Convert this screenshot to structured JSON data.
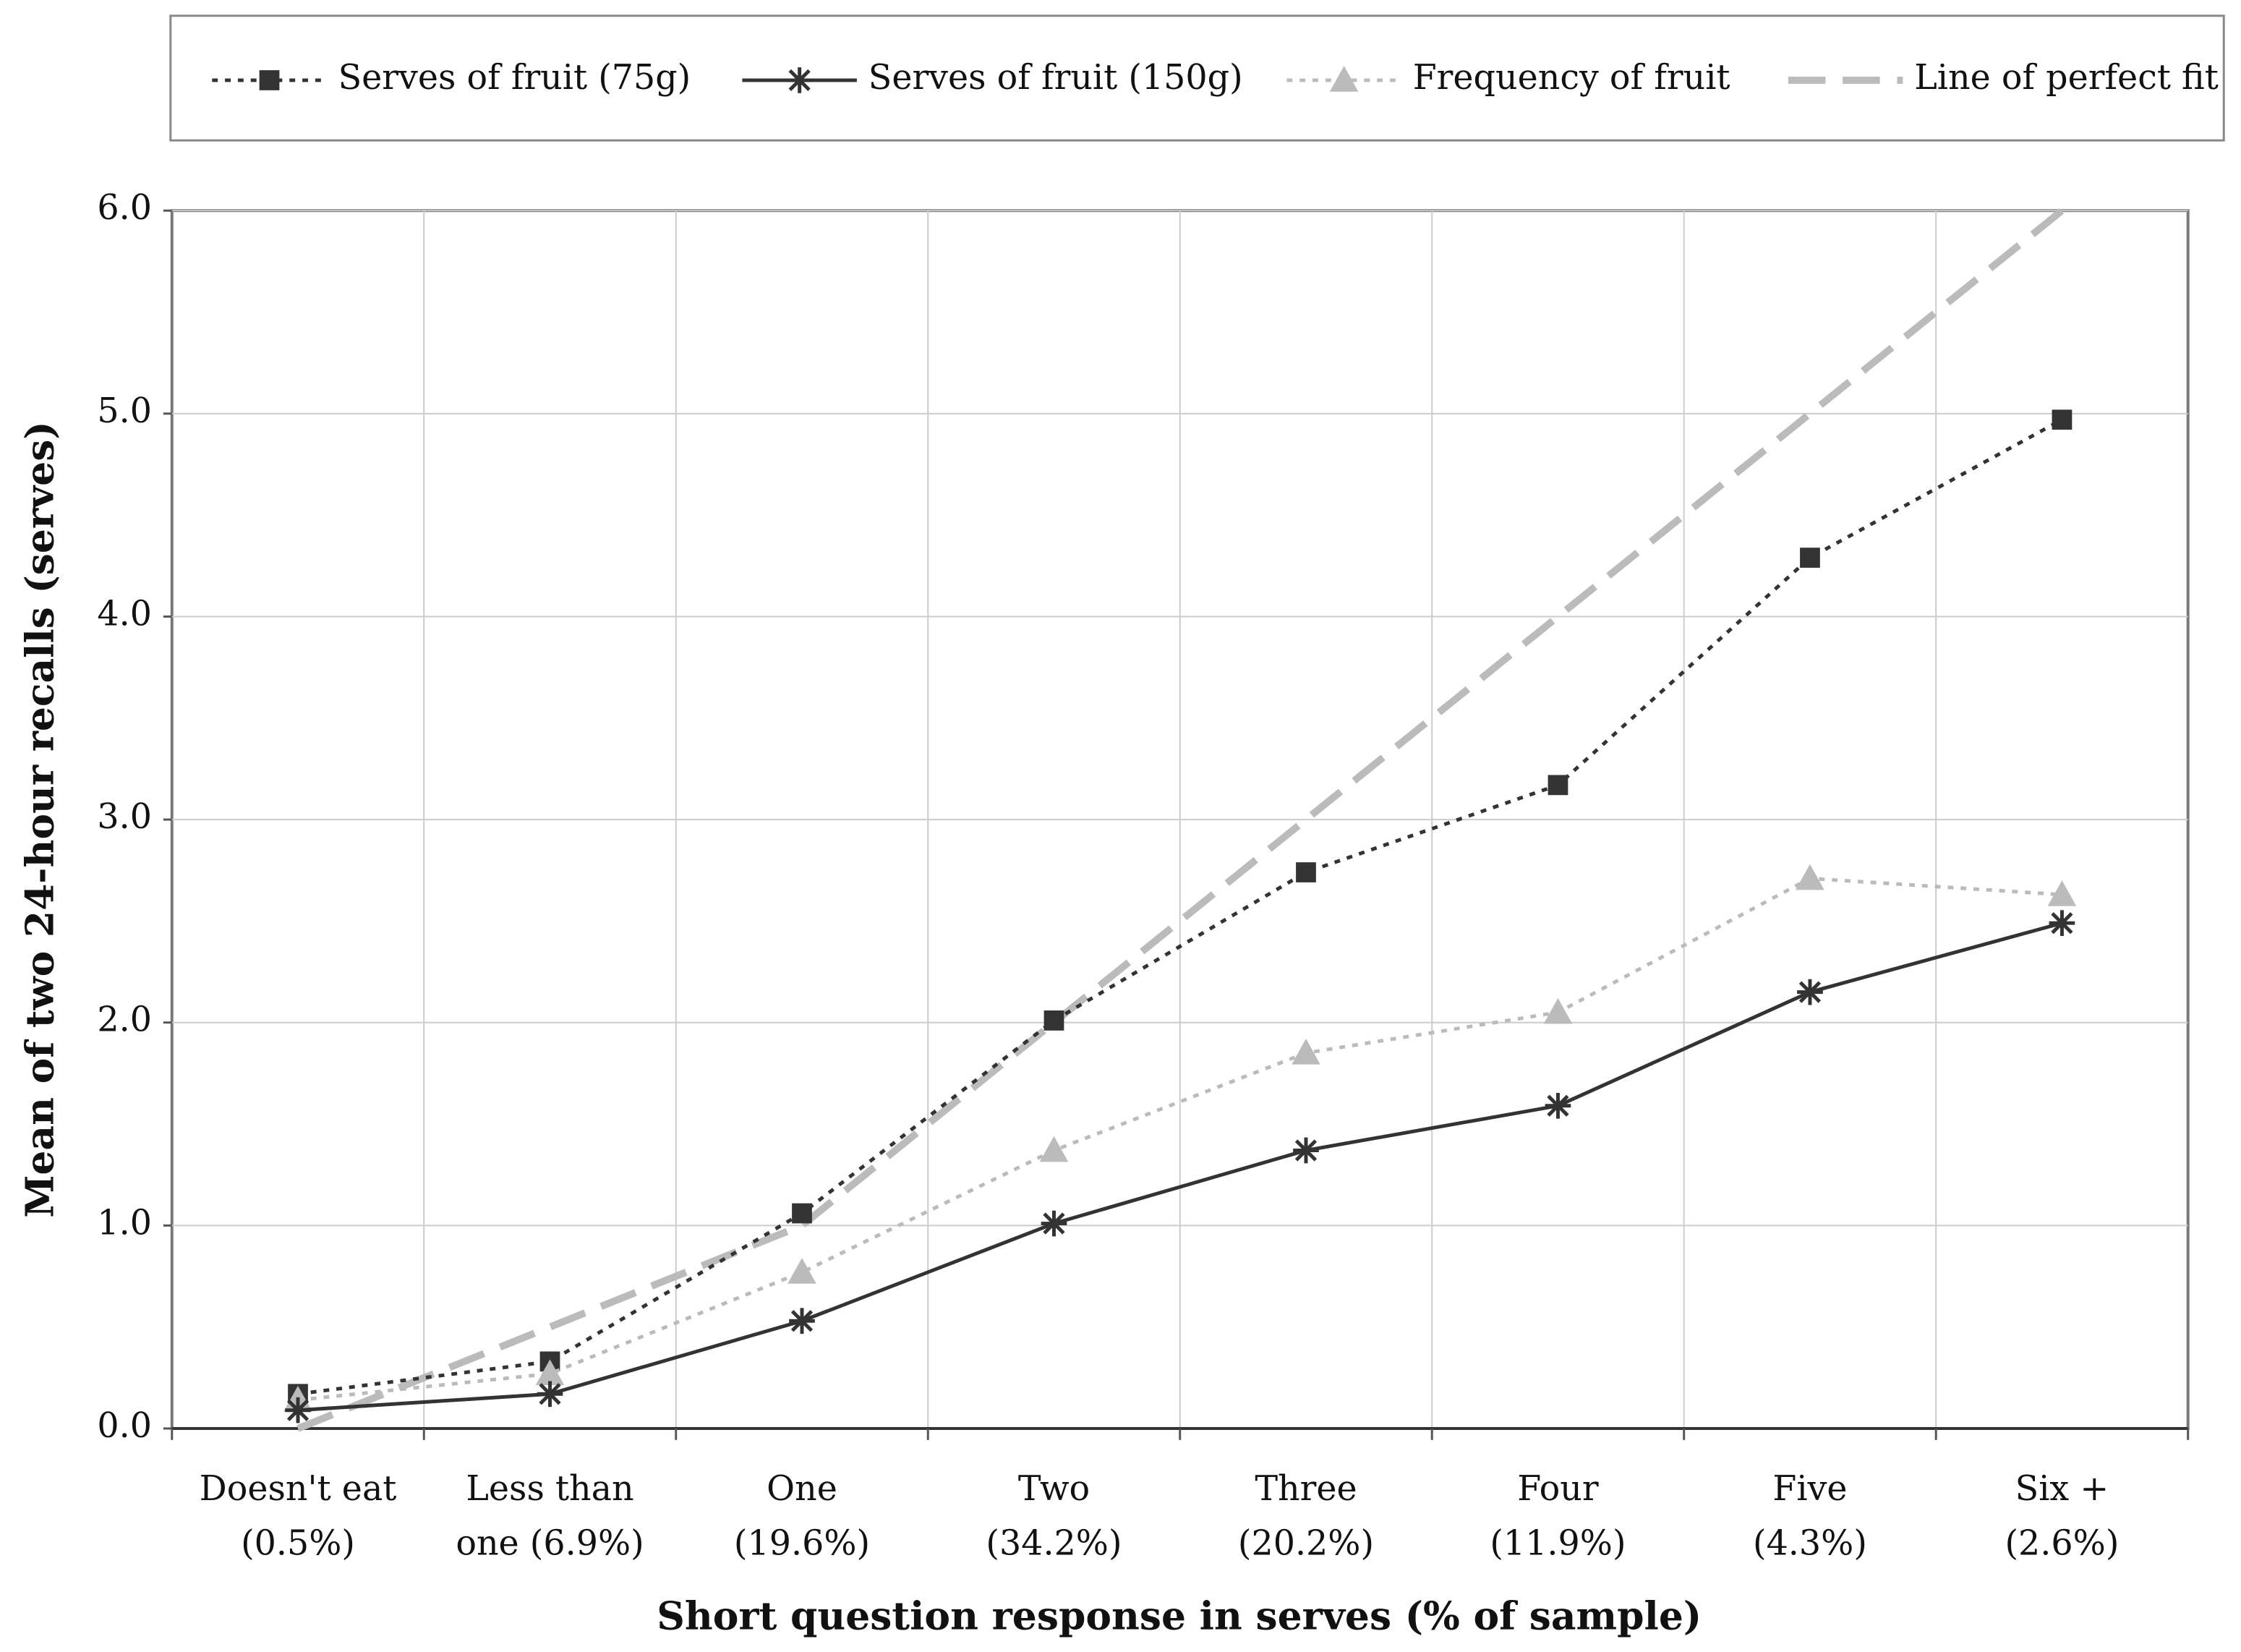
{
  "chart_data": {
    "type": "line",
    "categories": [
      [
        "Doesn't eat",
        "(0.5%)"
      ],
      [
        "Less than",
        "one (6.9%)"
      ],
      [
        "One",
        "(19.6%)"
      ],
      [
        "Two",
        "(34.2%)"
      ],
      [
        "Three",
        "(20.2%)"
      ],
      [
        "Four",
        "(11.9%)"
      ],
      [
        "Five",
        "(4.3%)"
      ],
      [
        "Six +",
        "(2.6%)"
      ]
    ],
    "series": [
      {
        "name": "Serves of fruit (75g)",
        "color": "#333333",
        "dash": "dotted",
        "marker": "square",
        "values": [
          0.17,
          0.33,
          1.06,
          2.01,
          2.74,
          3.17,
          4.29,
          4.97
        ]
      },
      {
        "name": "Serves of fruit (150g)",
        "color": "#333333",
        "dash": "solid",
        "marker": "asterisk",
        "values": [
          0.09,
          0.17,
          0.53,
          1.01,
          1.37,
          1.59,
          2.15,
          2.49
        ]
      },
      {
        "name": "Frequency of fruit",
        "color": "#bbbbbb",
        "dash": "dotted",
        "marker": "triangle",
        "values": [
          0.14,
          0.27,
          0.77,
          1.37,
          1.85,
          2.05,
          2.71,
          2.63
        ]
      },
      {
        "name": "Line of perfect fit",
        "color": "#bbbbbb",
        "dash": "dashed",
        "marker": "none",
        "values": [
          0,
          0.5,
          1,
          2,
          3,
          4,
          5,
          6
        ]
      }
    ],
    "ylim": [
      0,
      6
    ],
    "yticks": [
      {
        "value": 0,
        "label": "0.0"
      },
      {
        "value": 1,
        "label": "1.0"
      },
      {
        "value": 2,
        "label": "2.0"
      },
      {
        "value": 3,
        "label": "3.0"
      },
      {
        "value": 4,
        "label": "4.0"
      },
      {
        "value": 5,
        "label": "5.0"
      },
      {
        "value": 6,
        "label": "6.0"
      }
    ],
    "ylabel": "Mean of two 24-hour recalls (serves)",
    "xlabel": "Short question response in serves (% of sample)",
    "grid": true,
    "legend": "top"
  }
}
